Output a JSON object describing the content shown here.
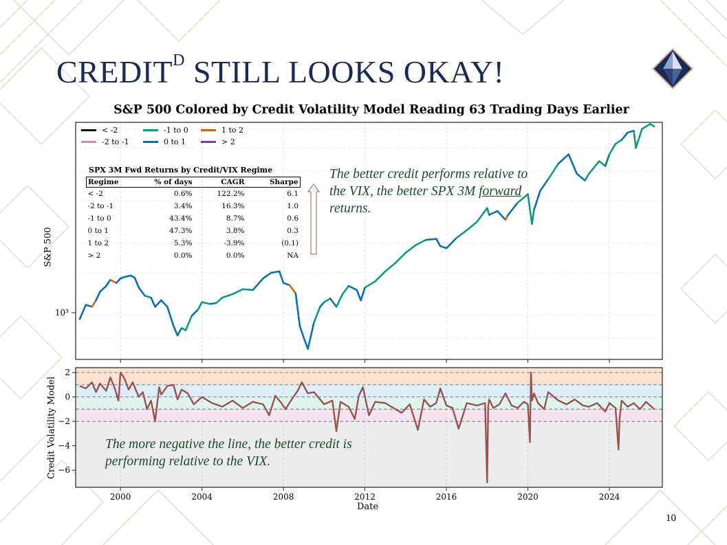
{
  "slide": {
    "title_main": "CREDIT",
    "title_sup": "D",
    "title_rest": " STILL LOOKS OKAY!",
    "page_number": "10",
    "annotation_top_before": "The better credit performs relative to the VIX, the better SPX 3M ",
    "annotation_top_underlined": "forward",
    "annotation_top_after": " returns.",
    "annotation_bottom": "The more negative the line, the better credit is performing relative to the VIX.",
    "colors": {
      "title": "#1b2a55",
      "annotation": "#1c4a2a",
      "logo_dark": "#1b2a55",
      "logo_light": "#c9d3e6"
    }
  },
  "chart_data": [
    {
      "type": "line",
      "title": "S&P 500 Colored by Credit Volatility Model Reading 63 Trading Days Earlier",
      "ylabel": "S&P 500",
      "yscale": "log",
      "ytick_label": "10³",
      "ylim": [
        650,
        6400
      ],
      "xlim": [
        1997.8,
        2026.6
      ],
      "legend": [
        {
          "label": "< -2",
          "color": "#111111"
        },
        {
          "label": "-2 to -1",
          "color": "#d486b8"
        },
        {
          "label": "-1 to 0",
          "color": "#0f9a7d"
        },
        {
          "label": "0 to 1",
          "color": "#0a6fb0"
        },
        {
          "label": "1 to 2",
          "color": "#d3650c"
        },
        {
          "label": "> 2",
          "color": "#7b3f98"
        }
      ],
      "series": [
        {
          "name": "S&P 500",
          "x": [
            1998.0,
            1998.3,
            1998.6,
            1998.8,
            1999.0,
            1999.3,
            1999.5,
            1999.8,
            2000.0,
            2000.2,
            2000.5,
            2000.7,
            2000.9,
            2001.2,
            2001.5,
            2001.7,
            2002.0,
            2002.3,
            2002.6,
            2002.8,
            2003.0,
            2003.2,
            2003.5,
            2003.8,
            2004.0,
            2004.4,
            2004.7,
            2005.0,
            2005.5,
            2006.0,
            2006.5,
            2007.0,
            2007.4,
            2007.8,
            2008.0,
            2008.3,
            2008.6,
            2008.8,
            2009.0,
            2009.2,
            2009.5,
            2009.8,
            2010.0,
            2010.3,
            2010.6,
            2010.9,
            2011.2,
            2011.6,
            2011.8,
            2012.0,
            2012.5,
            2013.0,
            2013.5,
            2014.0,
            2014.5,
            2015.0,
            2015.5,
            2015.7,
            2016.0,
            2016.5,
            2017.0,
            2017.5,
            2018.0,
            2018.1,
            2018.5,
            2018.9,
            2019.0,
            2019.5,
            2020.0,
            2020.2,
            2020.3,
            2020.6,
            2021.0,
            2021.5,
            2022.0,
            2022.4,
            2022.8,
            2023.0,
            2023.5,
            2023.8,
            2024.0,
            2024.3,
            2024.6,
            2024.9,
            2025.2,
            2025.3,
            2025.6,
            2026.0,
            2026.2
          ],
          "y": [
            960,
            1100,
            1080,
            1150,
            1250,
            1320,
            1400,
            1360,
            1420,
            1440,
            1460,
            1430,
            1300,
            1200,
            1180,
            1080,
            1150,
            1080,
            900,
            820,
            880,
            860,
            990,
            1050,
            1130,
            1110,
            1120,
            1180,
            1220,
            1280,
            1270,
            1420,
            1500,
            1520,
            1360,
            1330,
            1230,
            900,
            800,
            720,
            930,
            1080,
            1130,
            1170,
            1080,
            1220,
            1320,
            1270,
            1150,
            1300,
            1380,
            1520,
            1650,
            1820,
            1960,
            2060,
            2080,
            1940,
            1900,
            2100,
            2260,
            2450,
            2800,
            2620,
            2720,
            2500,
            2600,
            2950,
            3200,
            2400,
            2750,
            3300,
            3700,
            4300,
            4700,
            3900,
            3650,
            3900,
            4400,
            4200,
            4700,
            5200,
            5400,
            5800,
            5900,
            5000,
            6000,
            6300,
            6150
          ],
          "color_regime": [
            "0",
            "0",
            "1",
            "0",
            "0",
            "0",
            "1",
            "0",
            "0",
            "0",
            "0",
            "0",
            "0",
            "-1",
            "0",
            "0",
            "0",
            "0",
            "0",
            "0",
            "-1",
            "-1",
            "0",
            "-1",
            "-1",
            "0",
            "-1",
            "-1",
            "-1",
            "-1",
            "0",
            "0",
            "0",
            "0",
            "0",
            "1",
            "0",
            "0",
            "0",
            "0",
            "-1",
            "0",
            "-1",
            "0",
            "-1",
            "-1",
            "0",
            "0",
            "0",
            "-1",
            "-1",
            "-1",
            "-1",
            "-1",
            "-1",
            "0",
            "0",
            "0",
            "0",
            "-1",
            "-1",
            "-1",
            "-1",
            "0",
            "0",
            "1",
            "0",
            "-1",
            "-1",
            "-1",
            "0",
            "0",
            "-1",
            "0",
            "0",
            "0",
            "-1",
            "-1",
            "-1",
            "0",
            "-1",
            "-1",
            "0",
            "0",
            "-1",
            "-1",
            "-1",
            "-1",
            "-1"
          ]
        }
      ],
      "table": {
        "title": "SPX 3M Fwd Returns by Credit/VIX Regime",
        "columns": [
          "Regime",
          "% of days",
          "CAGR",
          "Sharpe"
        ],
        "rows": [
          [
            "< -2",
            "0.6%",
            "122.2%",
            "6.1"
          ],
          [
            "-2 to -1",
            "3.4%",
            "16.3%",
            "1.0"
          ],
          [
            "-1 to 0",
            "43.4%",
            "8.7%",
            "0.6"
          ],
          [
            "0 to 1",
            "47.3%",
            "3.8%",
            "0.3"
          ],
          [
            "1 to 2",
            "5.3%",
            "-3.9%",
            "(0.1)"
          ],
          [
            "> 2",
            "0.0%",
            "0.0%",
            "NA"
          ]
        ]
      }
    },
    {
      "type": "line",
      "xlabel": "Date",
      "ylabel": "Credit Volatility Model",
      "xlim": [
        1997.8,
        2026.6
      ],
      "ylim": [
        -7.4,
        2.4
      ],
      "xticks": [
        2000,
        2004,
        2008,
        2012,
        2016,
        2020,
        2024
      ],
      "yticks": [
        2,
        0,
        -2,
        -4,
        -6
      ],
      "ytick_labels": [
        "2",
        "0",
        "−2",
        "−4",
        "−6"
      ],
      "reference_lines": [
        2,
        1,
        0,
        -1,
        -2
      ],
      "bands": [
        {
          "from": 1,
          "to": 2.4,
          "color": "#fbe3d2"
        },
        {
          "from": 0,
          "to": 1,
          "color": "#dceef8"
        },
        {
          "from": -1,
          "to": 0,
          "color": "#dff4ec"
        },
        {
          "from": -2,
          "to": -1,
          "color": "#f6e4f0"
        },
        {
          "from": -7.4,
          "to": -2,
          "color": "#ececec"
        }
      ],
      "series": [
        {
          "name": "Credit Volatility Model",
          "color": "#9a5151",
          "x": [
            1998.0,
            1998.3,
            1998.6,
            1998.8,
            1999.0,
            1999.3,
            1999.5,
            1999.7,
            1999.9,
            2000.0,
            2000.2,
            2000.4,
            2000.6,
            2000.9,
            2001.1,
            2001.3,
            2001.5,
            2001.7,
            2001.9,
            2002.0,
            2002.3,
            2002.6,
            2002.8,
            2003.0,
            2003.3,
            2003.6,
            2004.0,
            2004.5,
            2005.0,
            2005.5,
            2006.0,
            2006.5,
            2007.0,
            2007.3,
            2007.6,
            2007.9,
            2008.1,
            2008.4,
            2008.7,
            2008.9,
            2009.2,
            2009.5,
            2010.0,
            2010.4,
            2010.6,
            2010.8,
            2011.2,
            2011.5,
            2011.7,
            2011.9,
            2012.2,
            2012.5,
            2013.0,
            2013.4,
            2013.8,
            2014.2,
            2014.6,
            2014.9,
            2015.2,
            2015.5,
            2015.7,
            2016.0,
            2016.3,
            2016.6,
            2017.0,
            2017.5,
            2017.9,
            2018.0,
            2018.05,
            2018.1,
            2018.3,
            2018.6,
            2018.9,
            2019.2,
            2019.5,
            2019.8,
            2020.0,
            2020.1,
            2020.15,
            2020.2,
            2020.3,
            2020.5,
            2020.8,
            2021.0,
            2021.5,
            2021.9,
            2022.3,
            2022.7,
            2023.0,
            2023.4,
            2023.8,
            2024.0,
            2024.3,
            2024.45,
            2024.5,
            2024.6,
            2024.9,
            2025.2,
            2025.5,
            2025.8,
            2026.2
          ],
          "y": [
            0.9,
            0.7,
            1.2,
            0.4,
            1.1,
            0.5,
            1.6,
            0.8,
            -0.3,
            2.0,
            1.5,
            0.6,
            1.2,
            0.0,
            0.4,
            -1.0,
            -0.3,
            -2.0,
            0.8,
            0.2,
            0.9,
            1.0,
            -0.2,
            0.6,
            0.3,
            -0.6,
            0.0,
            -0.5,
            -0.8,
            -0.3,
            -0.9,
            -0.4,
            -0.6,
            -1.5,
            0.1,
            -0.5,
            -1.0,
            -0.2,
            0.5,
            1.2,
            0.3,
            0.4,
            -0.6,
            -0.3,
            -2.8,
            -0.4,
            -0.8,
            -1.8,
            0.1,
            0.8,
            -1.5,
            -0.4,
            -0.5,
            -0.9,
            -1.3,
            -0.6,
            -2.7,
            -0.2,
            -0.8,
            -0.5,
            0.7,
            -0.7,
            -0.9,
            -2.6,
            -0.5,
            -0.7,
            -0.5,
            -7.0,
            -0.8,
            -0.2,
            -0.9,
            -0.6,
            0.3,
            -0.7,
            -0.9,
            -0.4,
            -0.6,
            -3.7,
            2.0,
            -0.3,
            0.3,
            -0.5,
            -1.0,
            0.4,
            -0.3,
            -0.6,
            -0.2,
            -0.7,
            -0.8,
            -0.5,
            -1.2,
            -0.5,
            -0.9,
            -4.3,
            -1.8,
            -0.3,
            -0.8,
            -0.5,
            -1.0,
            -0.4,
            -1.0
          ]
        }
      ]
    }
  ]
}
